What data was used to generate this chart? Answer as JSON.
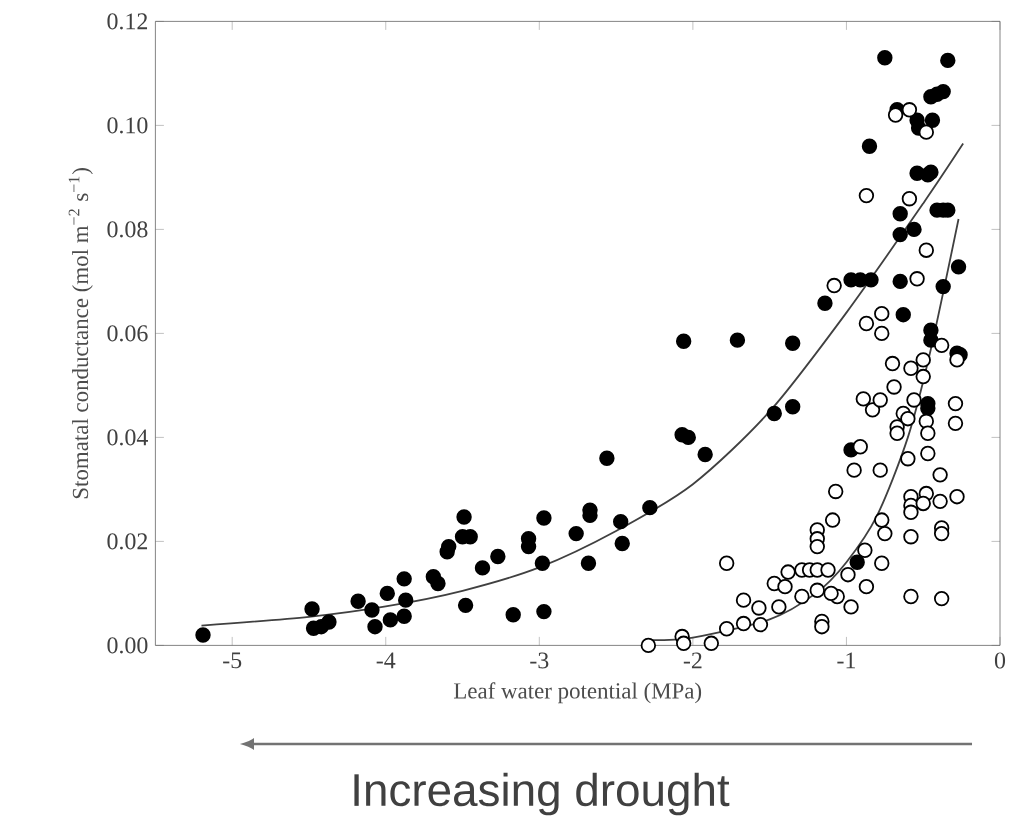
{
  "chart_data": {
    "type": "scatter",
    "marker": "circle",
    "xlabel": "Leaf water potential (MPa)",
    "ylabel": "Stomatal conductance (mol m$^{−2}$ s$^{−1}$)",
    "xlim": [
      -5.5,
      0
    ],
    "xticks": [
      -5,
      -4,
      -3,
      -2,
      -1,
      0
    ],
    "ylim": [
      0,
      0.12
    ],
    "yticks": [
      {
        "value": 0,
        "label": "0.00"
      },
      {
        "value": 0.02,
        "label": "0.02"
      },
      {
        "value": 0.04,
        "label": "0.04"
      },
      {
        "value": 0.06,
        "label": "0.06"
      },
      {
        "value": 0.08,
        "label": "0.08"
      },
      {
        "value": 0.1,
        "label": "0.10"
      },
      {
        "value": 0.12,
        "label": "0.12"
      }
    ],
    "annotations": [
      "Increasing drought"
    ],
    "series": [
      {
        "color": "#000000",
        "x": [
          -5.19,
          -4.48,
          -4.47,
          -4.42,
          -4.37,
          -4.18,
          -4.09,
          -4.07,
          -3.99,
          -3.97,
          -3.88,
          -3.87,
          -3.88,
          -3.69,
          -3.66,
          -3.59,
          -3.6,
          -3.49,
          -3.5,
          -3.45,
          -3.48,
          -3.37,
          -3.27,
          -3.17,
          -3.07,
          -3.07,
          -2.97,
          -2.98,
          -2.97,
          -2.76,
          -2.67,
          -2.67,
          -2.68,
          -2.56,
          -2.47,
          -2.46,
          -2.28,
          -2.06,
          -2.07,
          -2.03,
          -1.92,
          -1.71,
          -1.47,
          -1.35,
          -1.35,
          -1.14,
          -0.97,
          -0.93,
          -0.97,
          -0.91,
          -0.84,
          -0.85,
          -0.75,
          -0.65,
          -0.65,
          -0.65,
          -0.63,
          -0.56,
          -0.67,
          -0.54,
          -0.53,
          -0.54,
          -0.47,
          -0.44,
          -0.45,
          -0.41,
          -0.37,
          -0.34,
          -0.45,
          -0.41,
          -0.37,
          -0.34,
          -0.27,
          -0.37,
          -0.45,
          -0.45,
          -0.47,
          -0.47,
          -0.28,
          -0.26
        ],
        "values": [
          0.002,
          0.007,
          0.0033,
          0.0036,
          0.0045,
          0.0085,
          0.0068,
          0.0036,
          0.01,
          0.0049,
          0.0128,
          0.0087,
          0.0056,
          0.0132,
          0.0119,
          0.019,
          0.018,
          0.0247,
          0.0209,
          0.0209,
          0.0077,
          0.0149,
          0.0171,
          0.0059,
          0.0205,
          0.019,
          0.0245,
          0.0158,
          0.0065,
          0.0215,
          0.026,
          0.025,
          0.0158,
          0.036,
          0.0238,
          0.0196,
          0.0265,
          0.0585,
          0.0405,
          0.04,
          0.0367,
          0.0587,
          0.0446,
          0.0581,
          0.0459,
          0.0658,
          0.0376,
          0.016,
          0.0703,
          0.0703,
          0.0703,
          0.096,
          0.113,
          0.083,
          0.079,
          0.07,
          0.0636,
          0.08,
          0.103,
          0.101,
          0.0995,
          0.0908,
          0.0905,
          0.101,
          0.1055,
          0.106,
          0.1065,
          0.1125,
          0.091,
          0.0837,
          0.0837,
          0.0837,
          0.0728,
          0.069,
          0.0606,
          0.0587,
          0.0465,
          0.0456,
          0.0562,
          0.0559
        ]
      },
      {
        "color": "#ffffff",
        "x": [
          -2.29,
          -2.07,
          -2.06,
          -1.88,
          -1.78,
          -1.78,
          -1.67,
          -1.67,
          -1.57,
          -1.56,
          -1.47,
          -1.44,
          -1.4,
          -1.38,
          -1.29,
          -1.24,
          -1.19,
          -1.12,
          -1.29,
          -1.19,
          -1.19,
          -1.19,
          -1.19,
          -1.16,
          -1.16,
          -1.09,
          -1.07,
          -1.06,
          -1.1,
          -1.08,
          -0.99,
          -0.97,
          -0.95,
          -0.91,
          -0.88,
          -0.87,
          -0.89,
          -0.83,
          -0.87,
          -0.87,
          -0.78,
          -0.77,
          -0.75,
          -0.77,
          -0.78,
          -0.77,
          -0.77,
          -0.7,
          -0.69,
          -0.67,
          -0.67,
          -0.68,
          -0.63,
          -0.6,
          -0.6,
          -0.58,
          -0.58,
          -0.58,
          -0.58,
          -0.58,
          -0.58,
          -0.59,
          -0.59,
          -0.54,
          -0.48,
          -0.48,
          -0.5,
          -0.5,
          -0.48,
          -0.47,
          -0.47,
          -0.48,
          -0.5,
          -0.39,
          -0.39,
          -0.38,
          -0.38,
          -0.38,
          -0.38,
          -0.29,
          -0.29,
          -0.28,
          -0.28,
          -0.56
        ],
        "values": [
          0.0,
          0.0017,
          0.0004,
          0.0004,
          0.0158,
          0.0032,
          0.0087,
          0.0042,
          0.0072,
          0.004,
          0.0119,
          0.0074,
          0.0113,
          0.0141,
          0.0145,
          0.0145,
          0.0145,
          0.0145,
          0.0094,
          0.0222,
          0.0205,
          0.019,
          0.0106,
          0.0046,
          0.0036,
          0.0241,
          0.0296,
          0.0094,
          0.01,
          0.0692,
          0.0136,
          0.0074,
          0.0337,
          0.0382,
          0.0183,
          0.0113,
          0.0474,
          0.0453,
          0.0619,
          0.0865,
          0.0337,
          0.0241,
          0.0215,
          0.0158,
          0.0472,
          0.0638,
          0.06,
          0.0542,
          0.0497,
          0.042,
          0.0408,
          0.102,
          0.0446,
          0.0436,
          0.0359,
          0.0094,
          0.0286,
          0.0269,
          0.0256,
          0.0209,
          0.0533,
          0.0859,
          0.103,
          0.0705,
          0.0987,
          0.076,
          0.0549,
          0.0517,
          0.0431,
          0.0408,
          0.0369,
          0.0292,
          0.0273,
          0.0328,
          0.0277,
          0.0226,
          0.0215,
          0.009,
          0.0577,
          0.0465,
          0.0427,
          0.0286,
          0.0549,
          0.0472
        ]
      },
      {
        "type": "line",
        "marker": "none",
        "color": "#404040",
        "x": [
          -5.2,
          -4.5,
          -4,
          -3.5,
          -3,
          -2.5,
          -2,
          -1.5,
          -1,
          -0.5,
          -0.24
        ],
        "values": [
          0.0038,
          0.0055,
          0.0075,
          0.0105,
          0.015,
          0.022,
          0.031,
          0.045,
          0.064,
          0.085,
          0.0965
        ]
      },
      {
        "type": "line",
        "marker": "none",
        "color": "#404040",
        "x": [
          -2.3,
          -2,
          -1.5,
          -1.2,
          -1,
          -0.8,
          -0.6,
          -0.45,
          -0.27
        ],
        "values": [
          0.001,
          0.0015,
          0.005,
          0.01,
          0.016,
          0.025,
          0.04,
          0.057,
          0.082
        ]
      }
    ]
  }
}
